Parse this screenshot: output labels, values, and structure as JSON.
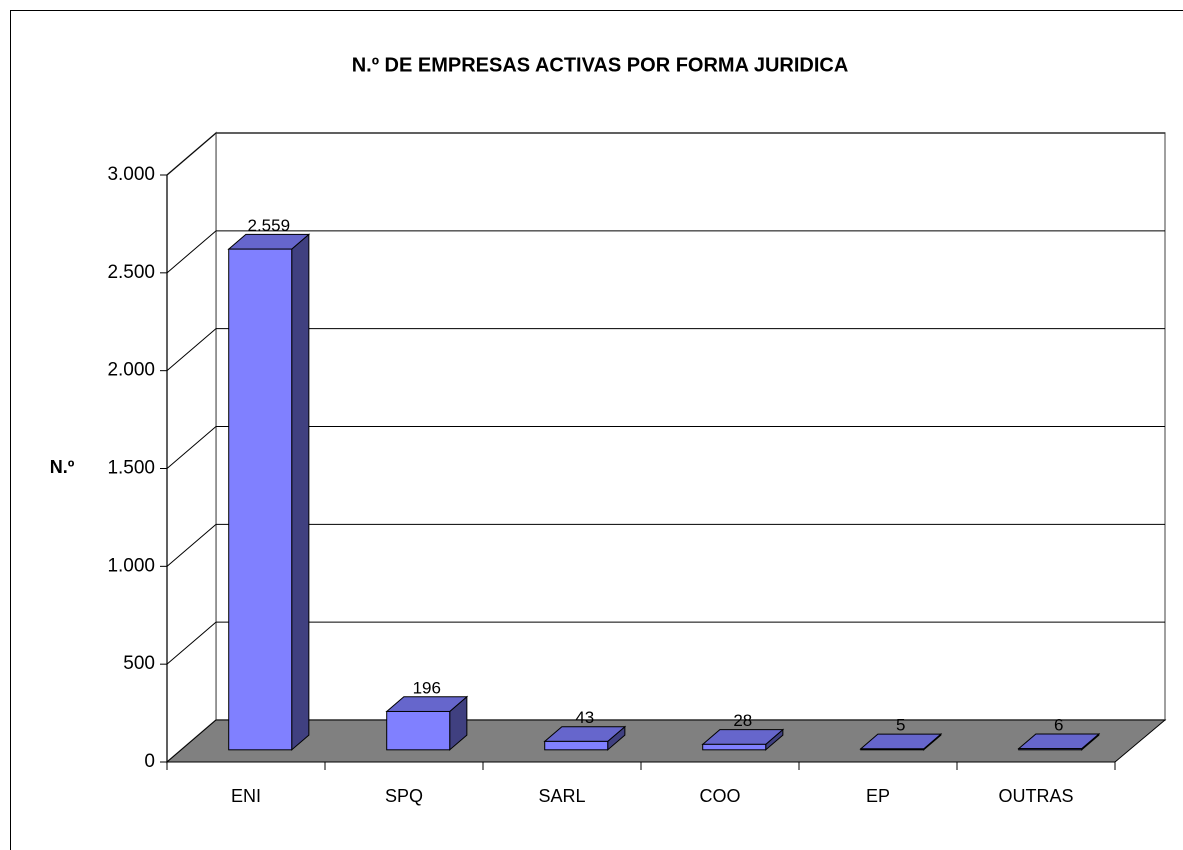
{
  "chart_data": {
    "type": "bar3d",
    "title": "N.º DE EMPRESAS ACTIVAS POR FORMA JURIDICA",
    "ylabel": "N.º",
    "categories": [
      "ENI",
      "SPQ",
      "SARL",
      "COO",
      "EP",
      "OUTRAS"
    ],
    "values": [
      2559,
      196,
      43,
      28,
      5,
      6
    ],
    "value_labels": [
      "2.559",
      "196",
      "43",
      "28",
      "5",
      "6"
    ],
    "color": "#8080ff",
    "ylim": [
      0,
      3000
    ],
    "yticks": [
      0,
      500,
      {
        "value": 1000,
        "label": "1.000"
      },
      {
        "value": 1500,
        "label": "1.500"
      },
      {
        "value": 2000,
        "label": "2.000"
      },
      {
        "value": 2500,
        "label": "2.500"
      },
      {
        "value": 3000,
        "label": "3.000"
      }
    ],
    "grid": true
  }
}
